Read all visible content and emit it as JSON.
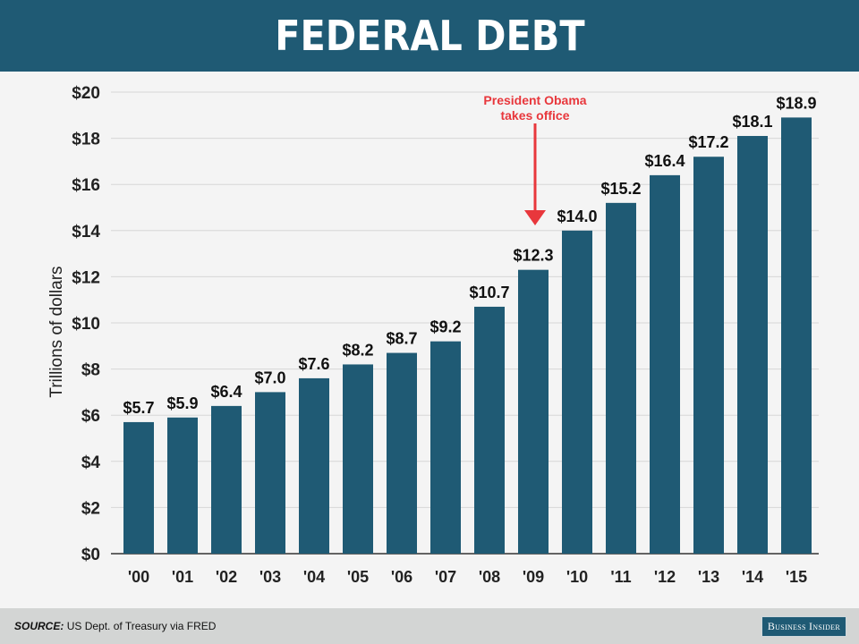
{
  "header": {
    "title": "FEDERAL DEBT"
  },
  "footer": {
    "source_label": "SOURCE:",
    "source_text": "US Dept. of Treasury via FRED",
    "logo": "Business Insider"
  },
  "colors": {
    "bar": "#1f5a74",
    "annotation": "#e8373c",
    "header": "#1f5a74"
  },
  "chart_data": {
    "type": "bar",
    "title": "FEDERAL DEBT",
    "ylabel": "Trillions of dollars",
    "xlabel": "",
    "ylim": [
      0,
      20
    ],
    "yticks": [
      0,
      2,
      4,
      6,
      8,
      10,
      12,
      14,
      16,
      18,
      20
    ],
    "ytick_labels": [
      "$0",
      "$2",
      "$4",
      "$6",
      "$8",
      "$10",
      "$12",
      "$14",
      "$16",
      "$18",
      "$20"
    ],
    "grid": true,
    "categories": [
      "'00",
      "'01",
      "'02",
      "'03",
      "'04",
      "'05",
      "'06",
      "'07",
      "'08",
      "'09",
      "'10",
      "'11",
      "'12",
      "'13",
      "'14",
      "'15"
    ],
    "values": [
      5.7,
      5.9,
      6.4,
      7.0,
      7.6,
      8.2,
      8.7,
      9.2,
      10.7,
      12.3,
      14.0,
      15.2,
      16.4,
      17.2,
      18.1,
      18.9
    ],
    "data_labels": [
      "$5.7",
      "$5.9",
      "$6.4",
      "$7.0",
      "$7.6",
      "$8.2",
      "$8.7",
      "$9.2",
      "$10.7",
      "$12.3",
      "$14.0",
      "$15.2",
      "$16.4",
      "$17.2",
      "$18.1",
      "$18.9"
    ],
    "annotation": {
      "text_line1": "President Obama",
      "text_line2": "takes office",
      "category": "'09"
    }
  }
}
